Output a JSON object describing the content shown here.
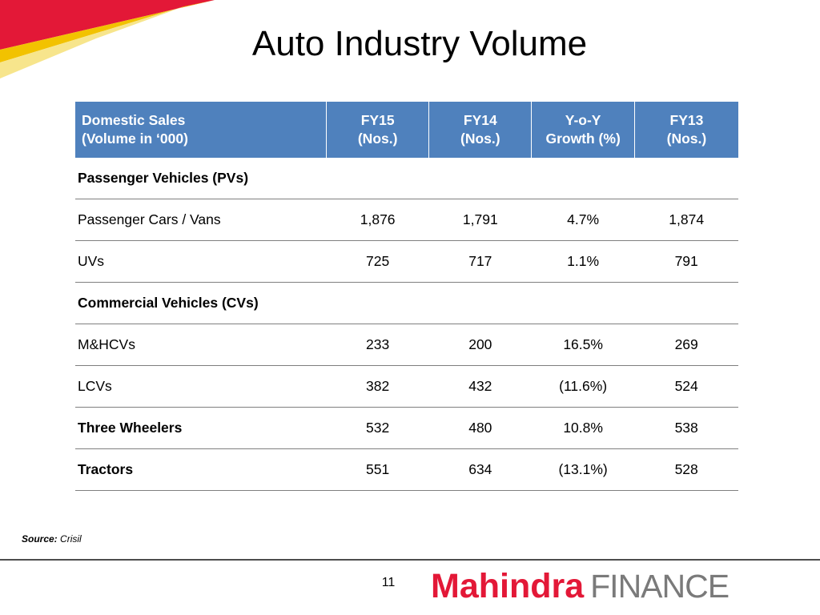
{
  "slide": {
    "title": "Auto Industry Volume",
    "page_number": "11",
    "source_label": "Source:",
    "source_value": "Crisil"
  },
  "brand": {
    "name_part1": "Mahindra",
    "name_part2": "FINANCE",
    "red": "#e31837",
    "grey": "#7a7a7a",
    "header_blue": "#4f81bd"
  },
  "table": {
    "headers": [
      {
        "line1": "Domestic Sales",
        "line2": "(Volume in ‘000)"
      },
      {
        "line1": "FY15",
        "line2": "(Nos.)"
      },
      {
        "line1": "FY14",
        "line2": "(Nos.)"
      },
      {
        "line1": "Y-o-Y",
        "line2": "Growth (%)"
      },
      {
        "line1": "FY13",
        "line2": "(Nos.)"
      }
    ],
    "rows": [
      {
        "label": "Passenger Vehicles (PVs)",
        "bold": true,
        "fy15": "",
        "fy14": "",
        "yoy": "",
        "fy13": ""
      },
      {
        "label": "Passenger Cars / Vans",
        "bold": false,
        "fy15": "1,876",
        "fy14": "1,791",
        "yoy": "4.7%",
        "fy13": "1,874"
      },
      {
        "label": "UVs",
        "bold": false,
        "fy15": "725",
        "fy14": "717",
        "yoy": "1.1%",
        "fy13": "791"
      },
      {
        "label": "Commercial Vehicles (CVs)",
        "bold": true,
        "fy15": "",
        "fy14": "",
        "yoy": "",
        "fy13": ""
      },
      {
        "label": "M&HCVs",
        "bold": false,
        "fy15": "233",
        "fy14": "200",
        "yoy": "16.5%",
        "fy13": "269"
      },
      {
        "label": "LCVs",
        "bold": false,
        "fy15": "382",
        "fy14": "432",
        "yoy": "(11.6%)",
        "fy13": "524"
      },
      {
        "label": "Three Wheelers",
        "bold": true,
        "fy15": "532",
        "fy14": "480",
        "yoy": "10.8%",
        "fy13": "538"
      },
      {
        "label": "Tractors",
        "bold": true,
        "fy15": "551",
        "fy14": "634",
        "yoy": "(13.1%)",
        "fy13": "528"
      }
    ]
  }
}
